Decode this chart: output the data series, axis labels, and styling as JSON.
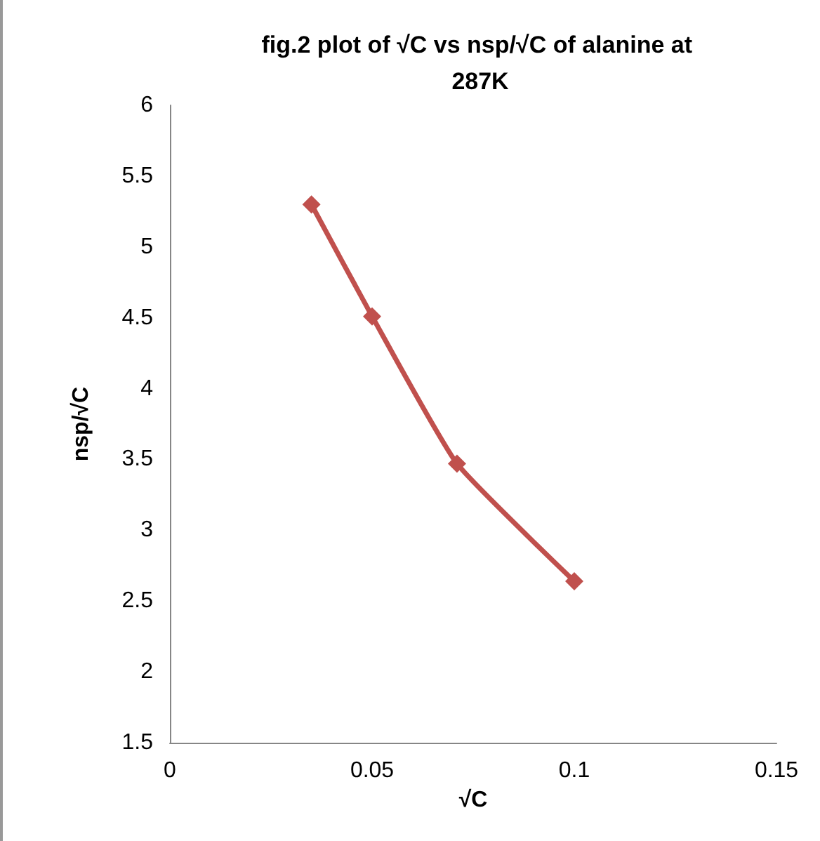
{
  "chart_data": {
    "type": "line",
    "title": "fig.2 plot of √C vs nsp/√C of alanine at 287K",
    "xlabel": "√C",
    "ylabel": "nsp/√C",
    "x": [
      0.035,
      0.05,
      0.071,
      0.1
    ],
    "series": [
      {
        "color": "#c0504d",
        "values": [
          5.3,
          4.51,
          3.47,
          2.64
        ]
      }
    ],
    "xlim": [
      0,
      0.15
    ],
    "xticks": [
      0,
      0.05,
      0.1,
      0.15
    ],
    "ylim": [
      1.5,
      6
    ],
    "yticks": [
      1.5,
      2,
      2.5,
      3,
      3.5,
      4,
      4.5,
      5,
      5.5,
      6
    ],
    "marker": "diamond",
    "line_style": "solid"
  }
}
